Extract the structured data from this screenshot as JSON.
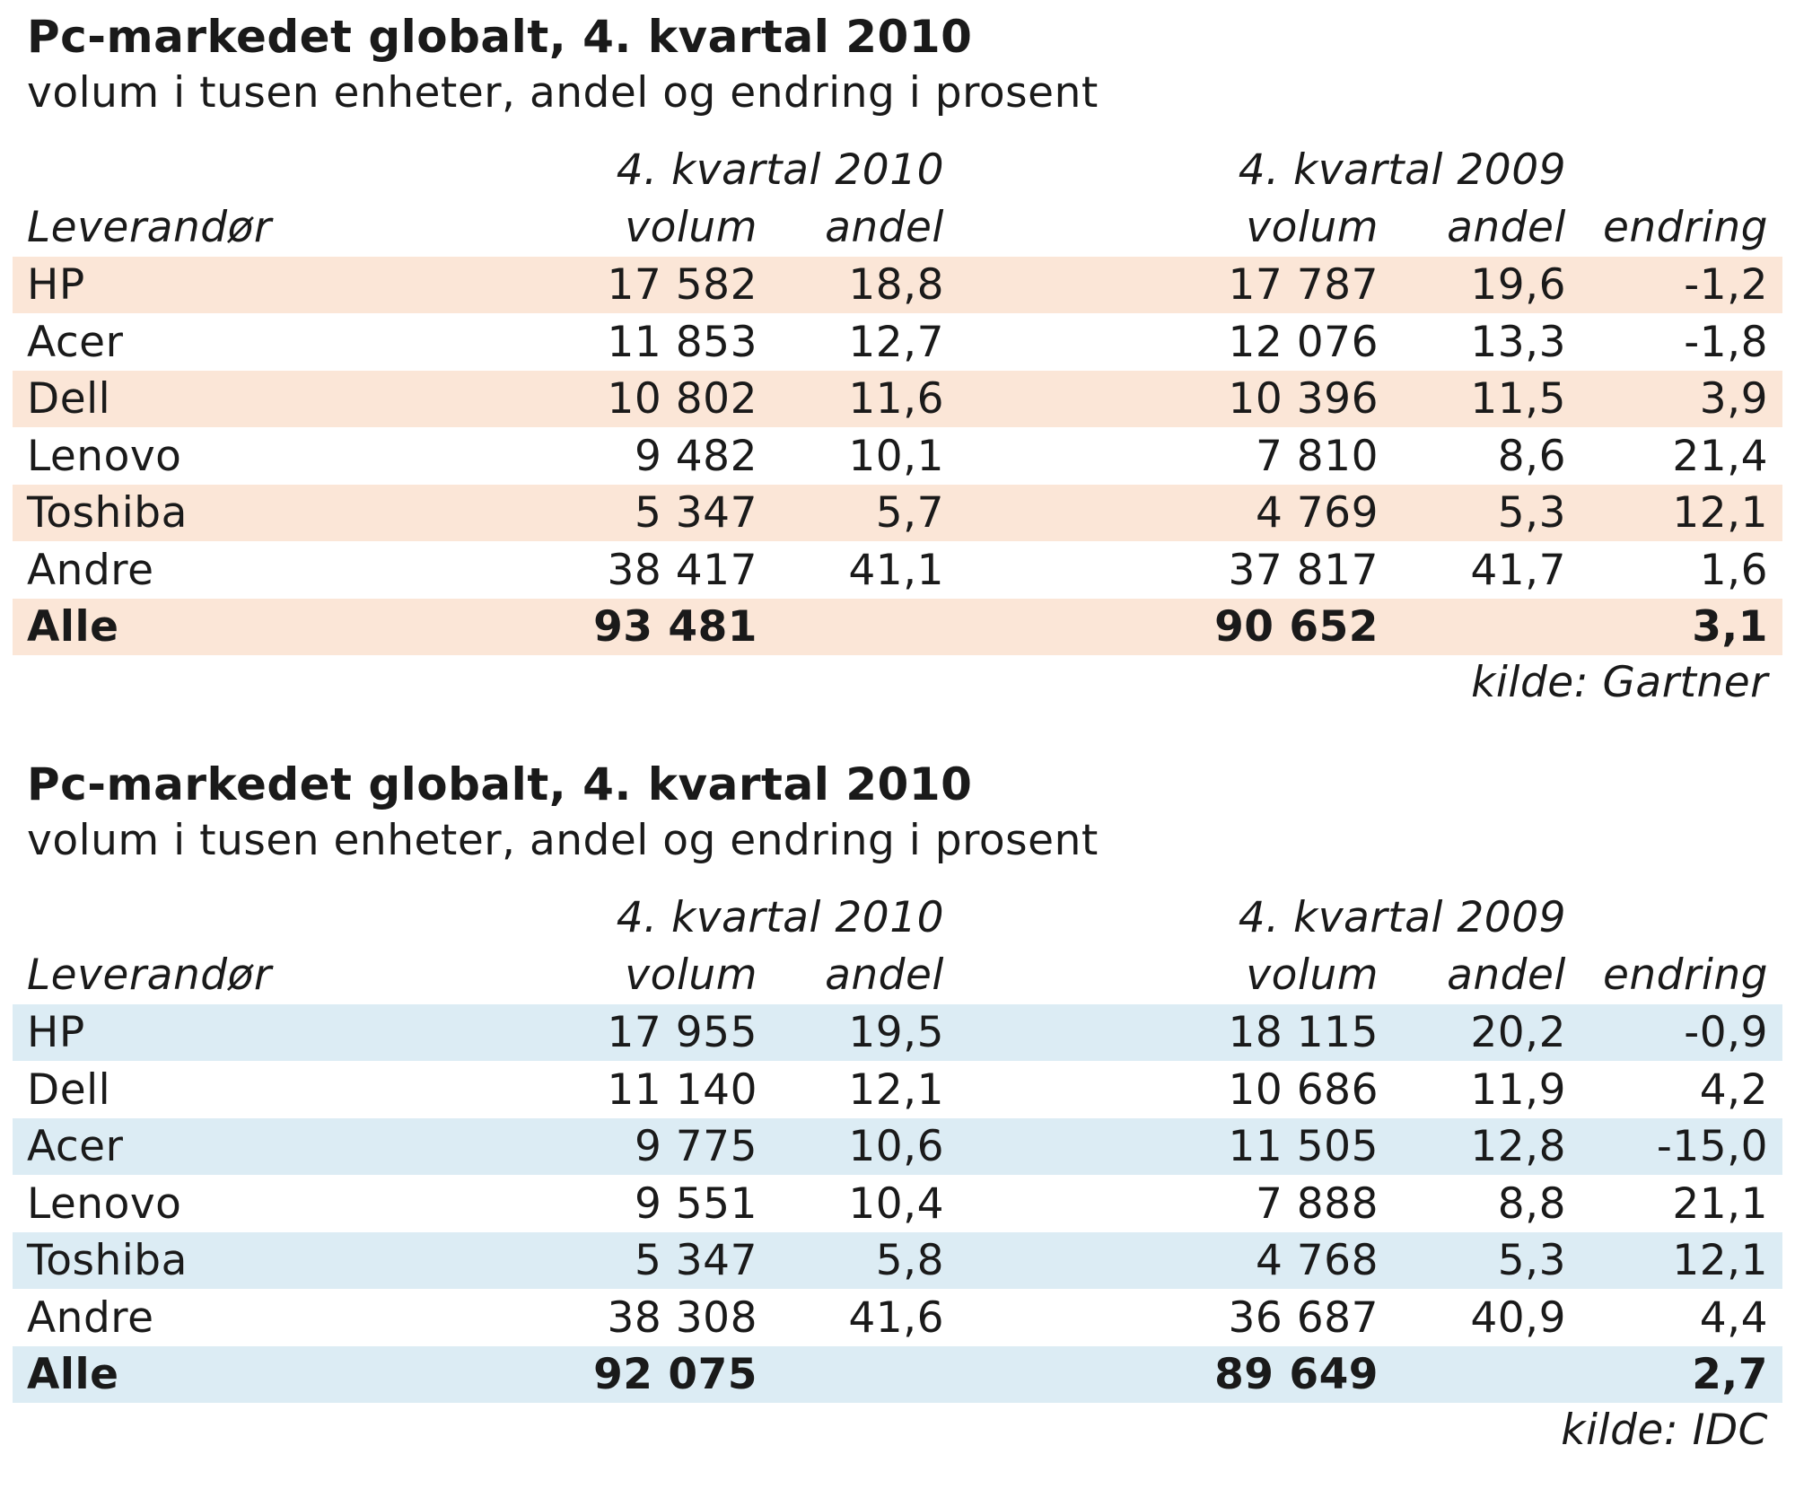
{
  "chart_data": [
    {
      "type": "table",
      "title": "Pc-markedet globalt, 4. kvartal 2010",
      "subtitle": "volum i tusen enheter, andel og endring i prosent",
      "period_labels": [
        "4. kvartal 2010",
        "4. kvartal 2009"
      ],
      "columns": [
        "Leverandør",
        "volum",
        "andel",
        "volum",
        "andel",
        "endring"
      ],
      "rows": [
        [
          "HP",
          "17 582",
          "18,8",
          "17 787",
          "19,6",
          "-1,2"
        ],
        [
          "Acer",
          "11 853",
          "12,7",
          "12 076",
          "13,3",
          "-1,8"
        ],
        [
          "Dell",
          "10 802",
          "11,6",
          "10 396",
          "11,5",
          "3,9"
        ],
        [
          "Lenovo",
          "9 482",
          "10,1",
          "7 810",
          "8,6",
          "21,4"
        ],
        [
          "Toshiba",
          "5 347",
          "5,7",
          "4 769",
          "5,3",
          "12,1"
        ],
        [
          "Andre",
          "38 417",
          "41,1",
          "37 817",
          "41,7",
          "1,6"
        ],
        [
          "Alle",
          "93 481",
          "",
          "90 652",
          "",
          "3,1"
        ]
      ],
      "source": "kilde: Gartner",
      "stripe_color": "#fbe6d7"
    },
    {
      "type": "table",
      "title": "Pc-markedet globalt, 4. kvartal 2010",
      "subtitle": "volum i tusen enheter, andel og endring i prosent",
      "period_labels": [
        "4. kvartal 2010",
        "4. kvartal 2009"
      ],
      "columns": [
        "Leverandør",
        "volum",
        "andel",
        "volum",
        "andel",
        "endring"
      ],
      "rows": [
        [
          "HP",
          "17 955",
          "19,5",
          "18 115",
          "20,2",
          "-0,9"
        ],
        [
          "Dell",
          "11 140",
          "12,1",
          "10 686",
          "11,9",
          "4,2"
        ],
        [
          "Acer",
          "9 775",
          "10,6",
          "11 505",
          "12,8",
          "-15,0"
        ],
        [
          "Lenovo",
          "9 551",
          "10,4",
          "7 888",
          "8,8",
          "21,1"
        ],
        [
          "Toshiba",
          "5 347",
          "5,8",
          "4 768",
          "5,3",
          "12,1"
        ],
        [
          "Andre",
          "38 308",
          "41,6",
          "36 687",
          "40,9",
          "4,4"
        ],
        [
          "Alle",
          "92 075",
          "",
          "89 649",
          "",
          "2,7"
        ]
      ],
      "source": "kilde: IDC",
      "stripe_color": "#dcecf4"
    }
  ]
}
